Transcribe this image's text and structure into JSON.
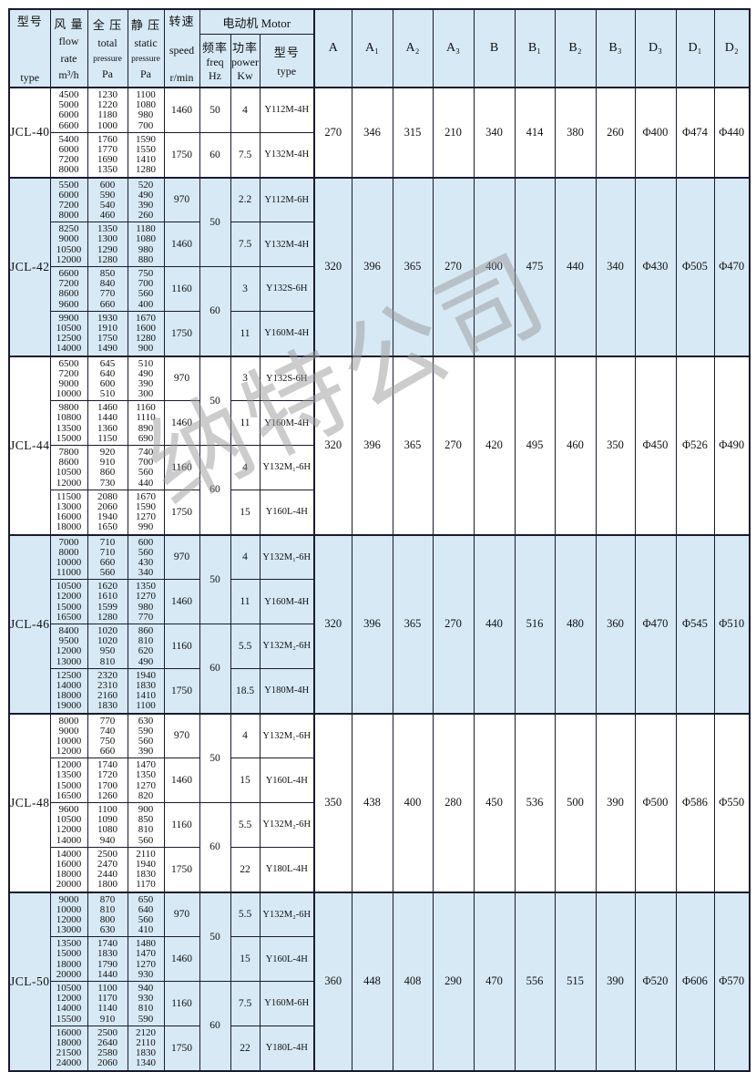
{
  "watermark": "纳特公司",
  "header": {
    "type_col": {
      "zh": "型号",
      "en": "type"
    },
    "flow_col": {
      "zh": "风 量",
      "l2": "flow",
      "l3": "rate",
      "unit": "m³/h"
    },
    "total_col": {
      "zh": "全 压",
      "l2": "total",
      "l3": "pressure",
      "unit": "Pa"
    },
    "static_col": {
      "zh": "静 压",
      "l2": "static",
      "l3": "pressure",
      "unit": "Pa"
    },
    "speed_col": {
      "zh": "转速",
      "en": "speed",
      "unit": "r/min"
    },
    "motor_group": "电动机 Motor",
    "freq_col": {
      "zh": "频率",
      "en": "freq",
      "unit": "Hz"
    },
    "power_col": {
      "zh": "功率",
      "en": "power",
      "unit": "Kw"
    },
    "motor_type_col": {
      "zh": "型号",
      "en": "type"
    },
    "dim_cols": [
      "A",
      "A₁",
      "A₂",
      "A₃",
      "B",
      "B₁",
      "B₂",
      "B₃",
      "D₃",
      "D₁",
      "D₂"
    ]
  },
  "models": [
    {
      "type": "JCL-40",
      "blocks": [
        {
          "flow": [
            "4500",
            "5000",
            "6000",
            "6600"
          ],
          "total": [
            "1230",
            "1220",
            "1180",
            "1000"
          ],
          "static": [
            "1100",
            "1080",
            "980",
            "700"
          ],
          "speed": "1460",
          "freq": "50",
          "freq_rowspan": 1,
          "power": "4",
          "motor": "Y112M-4H"
        },
        {
          "flow": [
            "5400",
            "6000",
            "7200",
            "8000"
          ],
          "total": [
            "1760",
            "1770",
            "1690",
            "1350"
          ],
          "static": [
            "1590",
            "1550",
            "1410",
            "1280"
          ],
          "speed": "1750",
          "freq": "60",
          "freq_rowspan": 1,
          "power": "7.5",
          "motor": "Y132M-4H"
        }
      ],
      "dims": [
        "270",
        "346",
        "315",
        "210",
        "340",
        "414",
        "380",
        "260",
        "Φ400",
        "Φ474",
        "Φ440"
      ]
    },
    {
      "type": "JCL-42",
      "blocks": [
        {
          "flow": [
            "5500",
            "6000",
            "7200",
            "8000"
          ],
          "total": [
            "600",
            "590",
            "540",
            "460"
          ],
          "static": [
            "520",
            "490",
            "390",
            "260"
          ],
          "speed": "970",
          "freq": "50",
          "freq_rowspan": 2,
          "power": "2.2",
          "motor": "Y112M-6H"
        },
        {
          "flow": [
            "8250",
            "9000",
            "10500",
            "12000"
          ],
          "total": [
            "1350",
            "1300",
            "1290",
            "1280"
          ],
          "static": [
            "1180",
            "1080",
            "980",
            "880"
          ],
          "speed": "1460",
          "power": "7.5",
          "motor": "Y132M-4H"
        },
        {
          "flow": [
            "6600",
            "7200",
            "8600",
            "9600"
          ],
          "total": [
            "850",
            "840",
            "770",
            "660"
          ],
          "static": [
            "750",
            "700",
            "560",
            "400"
          ],
          "speed": "1160",
          "freq": "60",
          "freq_rowspan": 2,
          "power": "3",
          "motor": "Y132S-6H"
        },
        {
          "flow": [
            "9900",
            "10500",
            "12500",
            "14000"
          ],
          "total": [
            "1930",
            "1910",
            "1750",
            "1490"
          ],
          "static": [
            "1670",
            "1600",
            "1280",
            "900"
          ],
          "speed": "1750",
          "power": "11",
          "motor": "Y160M-4H"
        }
      ],
      "dims": [
        "320",
        "396",
        "365",
        "270",
        "400",
        "475",
        "440",
        "340",
        "Φ430",
        "Φ505",
        "Φ470"
      ]
    },
    {
      "type": "JCL-44",
      "blocks": [
        {
          "flow": [
            "6500",
            "7200",
            "9000",
            "10000"
          ],
          "total": [
            "645",
            "640",
            "600",
            "510"
          ],
          "static": [
            "510",
            "490",
            "390",
            "300"
          ],
          "speed": "970",
          "freq": "50",
          "freq_rowspan": 2,
          "power": "3",
          "motor": "Y132S-6H"
        },
        {
          "flow": [
            "9800",
            "10800",
            "13500",
            "15000"
          ],
          "total": [
            "1460",
            "1440",
            "1360",
            "1150"
          ],
          "static": [
            "1160",
            "1110",
            "890",
            "690"
          ],
          "speed": "1460",
          "power": "11",
          "motor": "Y160M-4H"
        },
        {
          "flow": [
            "7800",
            "8600",
            "10500",
            "12000"
          ],
          "total": [
            "920",
            "910",
            "860",
            "730"
          ],
          "static": [
            "740",
            "700",
            "560",
            "440"
          ],
          "speed": "1160",
          "freq": "60",
          "freq_rowspan": 2,
          "power": "4",
          "motor": "Y132M₁-6H"
        },
        {
          "flow": [
            "11500",
            "13000",
            "16000",
            "18000"
          ],
          "total": [
            "2080",
            "2060",
            "1940",
            "1650"
          ],
          "static": [
            "1670",
            "1590",
            "1270",
            "990"
          ],
          "speed": "1750",
          "power": "15",
          "motor": "Y160L-4H"
        }
      ],
      "dims": [
        "320",
        "396",
        "365",
        "270",
        "420",
        "495",
        "460",
        "350",
        "Φ450",
        "Φ526",
        "Φ490"
      ]
    },
    {
      "type": "JCL-46",
      "blocks": [
        {
          "flow": [
            "7000",
            "8000",
            "10000",
            "11000"
          ],
          "total": [
            "710",
            "710",
            "660",
            "560"
          ],
          "static": [
            "600",
            "560",
            "430",
            "340"
          ],
          "speed": "970",
          "freq": "50",
          "freq_rowspan": 2,
          "power": "4",
          "motor": "Y132M₁-6H"
        },
        {
          "flow": [
            "10500",
            "12000",
            "15000",
            "16500"
          ],
          "total": [
            "1620",
            "1610",
            "1599",
            "1280"
          ],
          "static": [
            "1350",
            "1270",
            "980",
            "770"
          ],
          "speed": "1460",
          "power": "11",
          "motor": "Y160M-4H"
        },
        {
          "flow": [
            "8400",
            "9500",
            "12000",
            "13000"
          ],
          "total": [
            "1020",
            "1020",
            "950",
            "810"
          ],
          "static": [
            "860",
            "810",
            "620",
            "490"
          ],
          "speed": "1160",
          "freq": "60",
          "freq_rowspan": 2,
          "power": "5.5",
          "motor": "Y132M₂-6H"
        },
        {
          "flow": [
            "12500",
            "14000",
            "18000",
            "19000"
          ],
          "total": [
            "2320",
            "2310",
            "2160",
            "1830"
          ],
          "static": [
            "1940",
            "1830",
            "1410",
            "1100"
          ],
          "speed": "1750",
          "power": "18.5",
          "motor": "Y180M-4H"
        }
      ],
      "dims": [
        "320",
        "396",
        "365",
        "270",
        "440",
        "516",
        "480",
        "360",
        "Φ470",
        "Φ545",
        "Φ510"
      ]
    },
    {
      "type": "JCL-48",
      "blocks": [
        {
          "flow": [
            "8000",
            "9000",
            "10000",
            "12000"
          ],
          "total": [
            "770",
            "740",
            "750",
            "660"
          ],
          "static": [
            "630",
            "590",
            "560",
            "390"
          ],
          "speed": "970",
          "freq": "50",
          "freq_rowspan": 2,
          "power": "4",
          "motor": "Y132M₁-6H"
        },
        {
          "flow": [
            "12000",
            "13500",
            "15000",
            "16500"
          ],
          "total": [
            "1740",
            "1720",
            "1700",
            "1260"
          ],
          "static": [
            "1470",
            "1350",
            "1270",
            "820"
          ],
          "speed": "1460",
          "power": "15",
          "motor": "Y160L-4H"
        },
        {
          "flow": [
            "9600",
            "10500",
            "12000",
            "14000"
          ],
          "total": [
            "1100",
            "1090",
            "1080",
            "940"
          ],
          "static": [
            "900",
            "850",
            "810",
            "560"
          ],
          "speed": "1160",
          "freq": "60",
          "freq_rowspan": 2,
          "power": "5.5",
          "motor": "Y132M₂-6H"
        },
        {
          "flow": [
            "14000",
            "16000",
            "18000",
            "20000"
          ],
          "total": [
            "2500",
            "2470",
            "2440",
            "1800"
          ],
          "static": [
            "2110",
            "1940",
            "1830",
            "1170"
          ],
          "speed": "1750",
          "power": "22",
          "motor": "Y180L-4H"
        }
      ],
      "dims": [
        "350",
        "438",
        "400",
        "280",
        "450",
        "536",
        "500",
        "390",
        "Φ500",
        "Φ586",
        "Φ550"
      ]
    },
    {
      "type": "JCL-50",
      "blocks": [
        {
          "flow": [
            "9000",
            "10000",
            "12000",
            "13000"
          ],
          "total": [
            "870",
            "810",
            "800",
            "630"
          ],
          "static": [
            "650",
            "640",
            "560",
            "410"
          ],
          "speed": "970",
          "freq": "50",
          "freq_rowspan": 2,
          "power": "5.5",
          "motor": "Y132M₂-6H"
        },
        {
          "flow": [
            "13500",
            "15000",
            "18000",
            "20000"
          ],
          "total": [
            "1740",
            "1830",
            "1790",
            "1440"
          ],
          "static": [
            "1480",
            "1470",
            "1270",
            "930"
          ],
          "speed": "1460",
          "power": "15",
          "motor": "Y160L-4H"
        },
        {
          "flow": [
            "10500",
            "12000",
            "14000",
            "15500"
          ],
          "total": [
            "1100",
            "1170",
            "1140",
            "910"
          ],
          "static": [
            "940",
            "930",
            "810",
            "590"
          ],
          "speed": "1160",
          "freq": "60",
          "freq_rowspan": 2,
          "power": "7.5",
          "motor": "Y160M-6H"
        },
        {
          "flow": [
            "16000",
            "18000",
            "21500",
            "24000"
          ],
          "total": [
            "2500",
            "2640",
            "2580",
            "2060"
          ],
          "static": [
            "2120",
            "2110",
            "1830",
            "1340"
          ],
          "speed": "1750",
          "power": "22",
          "motor": "Y180L-4H"
        }
      ],
      "dims": [
        "360",
        "448",
        "408",
        "290",
        "470",
        "556",
        "515",
        "390",
        "Φ520",
        "Φ606",
        "Φ570"
      ]
    }
  ]
}
